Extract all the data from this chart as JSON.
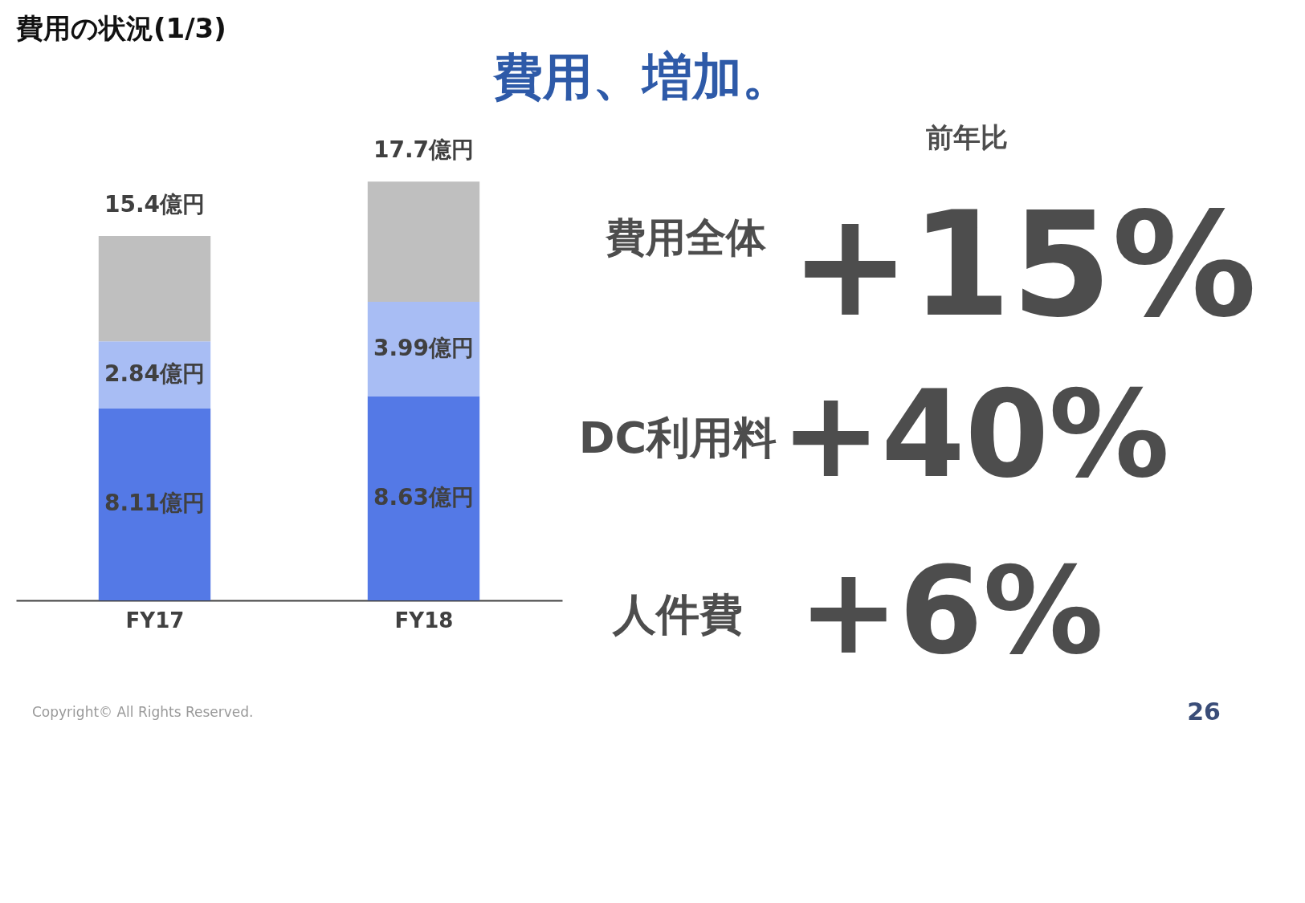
{
  "chart_data": {
    "type": "bar",
    "stacked": true,
    "title": "費用の状況(1/3)",
    "subtitle": "費用、増加。",
    "categories": [
      "FY17",
      "FY18"
    ],
    "series": [
      {
        "color": "#5479e6",
        "values": [
          8.11,
          8.63
        ],
        "value_labels": [
          "8.11億円",
          "8.63億円"
        ]
      },
      {
        "color": "#a8bdf4",
        "values": [
          2.84,
          3.99
        ],
        "value_labels": [
          "2.84億円",
          "3.99億円"
        ]
      },
      {
        "color": "#bfbfbf",
        "values": [
          4.45,
          5.08
        ]
      }
    ],
    "totals": [
      "15.4億円",
      "17.7億円"
    ],
    "annotations": [
      "前年比",
      "費用全体",
      "+15%",
      "DC利用料",
      "+40%",
      "人件費",
      "+6%",
      "Copyright©  All Rights Reserved.",
      "26"
    ]
  }
}
